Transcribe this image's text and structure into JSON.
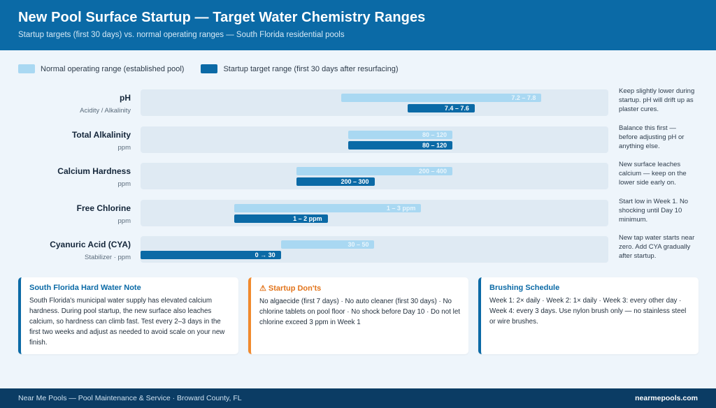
{
  "header": {
    "title": "New Pool Surface Startup — Target Water Chemistry Ranges",
    "subtitle": "Startup targets (first 30 days) vs. normal operating ranges — South Florida residential pools"
  },
  "legend": {
    "normal": "Normal operating range (established pool)",
    "startup": "Startup target range (first 30 days after resurfacing)"
  },
  "colors": {
    "normal": "#a9d8f2",
    "startup": "#0b6aa6",
    "warning": "#f18a2e"
  },
  "chart_data": {
    "type": "bar",
    "orientation": "horizontal-range",
    "series_names": [
      "Normal operating range (established pool)",
      "Startup target range (first 30 days after resurfacing)"
    ],
    "rows": [
      {
        "name": "pH",
        "unit": "Acidity / Alkalinity",
        "normal": [
          7.2,
          7.8
        ],
        "normal_label": "7.2 – 7.8",
        "startup": [
          7.4,
          7.6
        ],
        "startup_label": "7.4 – 7.6",
        "scale": [
          6.6,
          8.0
        ],
        "note": "Keep slightly lower during startup. pH will drift up as plaster cures."
      },
      {
        "name": "Total Alkalinity",
        "unit": "ppm",
        "normal": [
          80,
          120
        ],
        "normal_label": "80 – 120",
        "startup": [
          80,
          120
        ],
        "startup_label": "80 – 120",
        "scale": [
          0,
          180
        ],
        "note": "Balance this first — before adjusting pH or anything else."
      },
      {
        "name": "Calcium Hardness",
        "unit": "ppm",
        "normal": [
          200,
          400
        ],
        "normal_label": "200 – 400",
        "startup": [
          200,
          300
        ],
        "startup_label": "200 – 300",
        "scale": [
          0,
          600
        ],
        "note": "New surface leaches calcium — keep on the lower side early on."
      },
      {
        "name": "Free Chlorine",
        "unit": "ppm",
        "normal": [
          1,
          3
        ],
        "normal_label": "1 – 3 ppm",
        "startup": [
          1,
          2
        ],
        "startup_label": "1 – 2 ppm",
        "scale": [
          0,
          5
        ],
        "note": "Start low in Week 1. No shocking until Day 10 minimum."
      },
      {
        "name": "Cyanuric Acid (CYA)",
        "unit": "Stabilizer · ppm",
        "normal": [
          30,
          50
        ],
        "normal_label": "30 – 50",
        "startup": [
          0,
          30
        ],
        "startup_label": "0 → 30",
        "scale": [
          0,
          100
        ],
        "note": "New tap water starts near zero. Add CYA gradually after startup."
      }
    ]
  },
  "cards": [
    {
      "title": "South Florida Hard Water Note",
      "body": "South Florida's municipal water supply has elevated calcium hardness. During pool startup, the new surface also leaches calcium, so hardness can climb fast. Test every 2–3 days in the first two weeks and adjust as needed to avoid scale on your new finish."
    },
    {
      "title": "⚠ Startup Don'ts",
      "body": "No algaecide (first 7 days) · No auto cleaner (first 30 days) · No chlorine tablets on pool floor · No shock before Day 10 · Do not let chlorine exceed 3 ppm in Week 1"
    },
    {
      "title": "Brushing Schedule",
      "body": "Week 1: 2× daily · Week 2: 1× daily · Week 3: every other day · Week 4: every 3 days. Use nylon brush only — no stainless steel or wire brushes."
    }
  ],
  "footer": {
    "left": "Near Me Pools — Pool Maintenance & Service · Broward County, FL",
    "right": "nearmepools.com"
  }
}
